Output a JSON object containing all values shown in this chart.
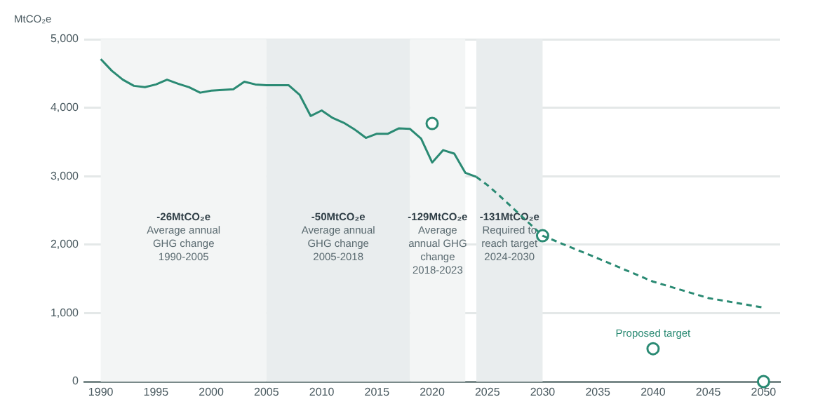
{
  "chart_data": {
    "type": "line",
    "ylabel": "MtCO₂e",
    "xlim": [
      1988.5,
      2051.5
    ],
    "ylim": [
      0,
      5000
    ],
    "xticks": [
      1990,
      1995,
      2000,
      2005,
      2010,
      2015,
      2020,
      2025,
      2030,
      2035,
      2040,
      2045,
      2050
    ],
    "yticks": [
      {
        "value": 0,
        "label": "0"
      },
      {
        "value": 1000,
        "label": "1,000"
      },
      {
        "value": 2000,
        "label": "2,000"
      },
      {
        "value": 3000,
        "label": "3,000"
      },
      {
        "value": 4000,
        "label": "4,000"
      },
      {
        "value": 5000,
        "label": "5,000"
      }
    ],
    "grid": "y",
    "legend": false,
    "series": [
      {
        "color": "#2a8a73",
        "line_style": "solid",
        "marker": "none",
        "x": [
          1990,
          1991,
          1992,
          1993,
          1994,
          1995,
          1996,
          1997,
          1998,
          1999,
          2000,
          2001,
          2002,
          2003,
          2004,
          2005,
          2006,
          2007,
          2008,
          2009,
          2010,
          2011,
          2012,
          2013,
          2014,
          2015,
          2016,
          2017,
          2018,
          2019,
          2020,
          2021,
          2022,
          2023,
          2024
        ],
        "values": [
          4710,
          4540,
          4410,
          4320,
          4300,
          4340,
          4410,
          4350,
          4300,
          4220,
          4250,
          4260,
          4270,
          4380,
          4340,
          4330,
          4330,
          4330,
          4190,
          3880,
          3960,
          3850,
          3780,
          3680,
          3560,
          3620,
          3620,
          3700,
          3690,
          3550,
          3200,
          3380,
          3330,
          3050,
          2990
        ]
      },
      {
        "color": "#2a8a73",
        "line_style": "dashed",
        "marker": "none",
        "x": [
          2024,
          2025,
          2026,
          2027,
          2030,
          2035,
          2040,
          2045,
          2050
        ],
        "values": [
          2990,
          2870,
          2730,
          2580,
          2130,
          1800,
          1460,
          1220,
          1080
        ]
      },
      {
        "type": "scatter",
        "color": "#2a8a73",
        "marker": "circle",
        "x": [
          2020,
          2030,
          2040,
          2050
        ],
        "values": [
          3770,
          2130,
          480,
          0
        ]
      }
    ],
    "bands": [
      {
        "axis": "x",
        "from": 1990,
        "to": 2005,
        "color": "#f3f5f5",
        "label": "-26MtCO₂e\nAverage annual\nGHG change\n1990-2005"
      },
      {
        "axis": "x",
        "from": 2005,
        "to": 2018,
        "color": "#e9edee",
        "label": "-50MtCO₂e\nAverage annual\nGHG change\n2005-2018"
      },
      {
        "axis": "x",
        "from": 2018,
        "to": 2023,
        "color": "#f3f5f5",
        "label": "-129MtCO₂e\nAverage\nannual GHG\nchange\n2018-2023"
      },
      {
        "axis": "x",
        "from": 2024,
        "to": 2030,
        "color": "#e9edee",
        "label": "-131MtCO₂e\nRequired to\nreach target\n2024-2030"
      }
    ],
    "annotations": [
      {
        "text": "Proposed target",
        "x": 2040,
        "y": 480
      }
    ]
  }
}
